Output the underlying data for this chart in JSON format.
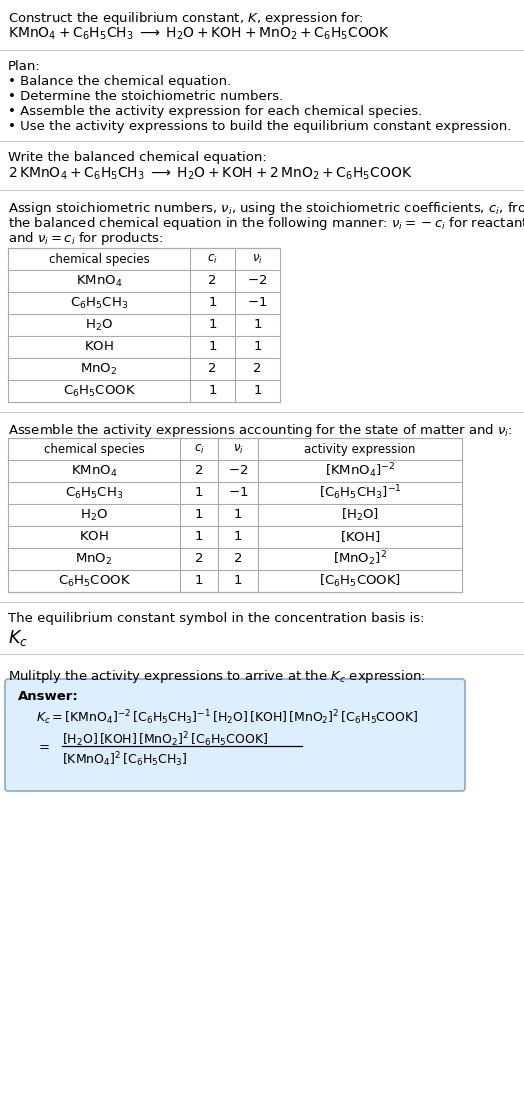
{
  "bg_color": "#ffffff",
  "text_color": "#000000",
  "title_line1": "Construct the equilibrium constant, $K$, expression for:",
  "title_line2": "$\\mathrm{KMnO_4 + C_6H_5CH_3 \\;\\longrightarrow\\; H_2O + KOH + MnO_2 + C_6H_5COOK}$",
  "plan_header": "Plan:",
  "plan_items": [
    "• Balance the chemical equation.",
    "• Determine the stoichiometric numbers.",
    "• Assemble the activity expression for each chemical species.",
    "• Use the activity expressions to build the equilibrium constant expression."
  ],
  "balanced_header": "Write the balanced chemical equation:",
  "balanced_eq": "$\\mathrm{2\\,KMnO_4 + C_6H_5CH_3 \\;\\longrightarrow\\; H_2O + KOH + 2\\,MnO_2 + C_6H_5COOK}$",
  "stoich_header_lines": [
    "Assign stoichiometric numbers, $\\nu_i$, using the stoichiometric coefficients, $c_i$, from",
    "the balanced chemical equation in the following manner: $\\nu_i = -c_i$ for reactants",
    "and $\\nu_i = c_i$ for products:"
  ],
  "table1_cols": [
    "chemical species",
    "$c_i$",
    "$\\nu_i$"
  ],
  "table1_rows": [
    [
      "$\\mathrm{KMnO_4}$",
      "2",
      "$-2$"
    ],
    [
      "$\\mathrm{C_6H_5CH_3}$",
      "1",
      "$-1$"
    ],
    [
      "$\\mathrm{H_2O}$",
      "1",
      "1"
    ],
    [
      "$\\mathrm{KOH}$",
      "1",
      "1"
    ],
    [
      "$\\mathrm{MnO_2}$",
      "2",
      "2"
    ],
    [
      "$\\mathrm{C_6H_5COOK}$",
      "1",
      "1"
    ]
  ],
  "activity_header": "Assemble the activity expressions accounting for the state of matter and $\\nu_i$:",
  "table2_cols": [
    "chemical species",
    "$c_i$",
    "$\\nu_i$",
    "activity expression"
  ],
  "table2_rows": [
    [
      "$\\mathrm{KMnO_4}$",
      "2",
      "$-2$",
      "$[\\mathrm{KMnO_4}]^{-2}$"
    ],
    [
      "$\\mathrm{C_6H_5CH_3}$",
      "1",
      "$-1$",
      "$[\\mathrm{C_6H_5CH_3}]^{-1}$"
    ],
    [
      "$\\mathrm{H_2O}$",
      "1",
      "1",
      "$[\\mathrm{H_2O}]$"
    ],
    [
      "$\\mathrm{KOH}$",
      "1",
      "1",
      "$[\\mathrm{KOH}]$"
    ],
    [
      "$\\mathrm{MnO_2}$",
      "2",
      "2",
      "$[\\mathrm{MnO_2}]^2$"
    ],
    [
      "$\\mathrm{C_6H_5COOK}$",
      "1",
      "1",
      "$[\\mathrm{C_6H_5COOK}]$"
    ]
  ],
  "kc_header": "The equilibrium constant symbol in the concentration basis is:",
  "kc_symbol": "$K_c$",
  "multiply_header": "Mulitply the activity expressions to arrive at the $K_c$ expression:",
  "answer_label": "Answer:",
  "answer_line1": "$K_c = [\\mathrm{KMnO_4}]^{-2}\\,[\\mathrm{C_6H_5CH_3}]^{-1}\\,[\\mathrm{H_2O}]\\,[\\mathrm{KOH}]\\,[\\mathrm{MnO_2}]^2\\,[\\mathrm{C_6H_5COOK}]$",
  "answer_num": "$[\\mathrm{H_2O}]\\,[\\mathrm{KOH}]\\,[\\mathrm{MnO_2}]^2\\,[\\mathrm{C_6H_5COOK}]$",
  "answer_den": "$[\\mathrm{KMnO_4}]^2\\,[\\mathrm{C_6H_5CH_3}]$",
  "answer_box_color": "#ddeeff",
  "answer_box_border": "#88aacc",
  "divider_color": "#cccccc",
  "font_size": 9.5
}
